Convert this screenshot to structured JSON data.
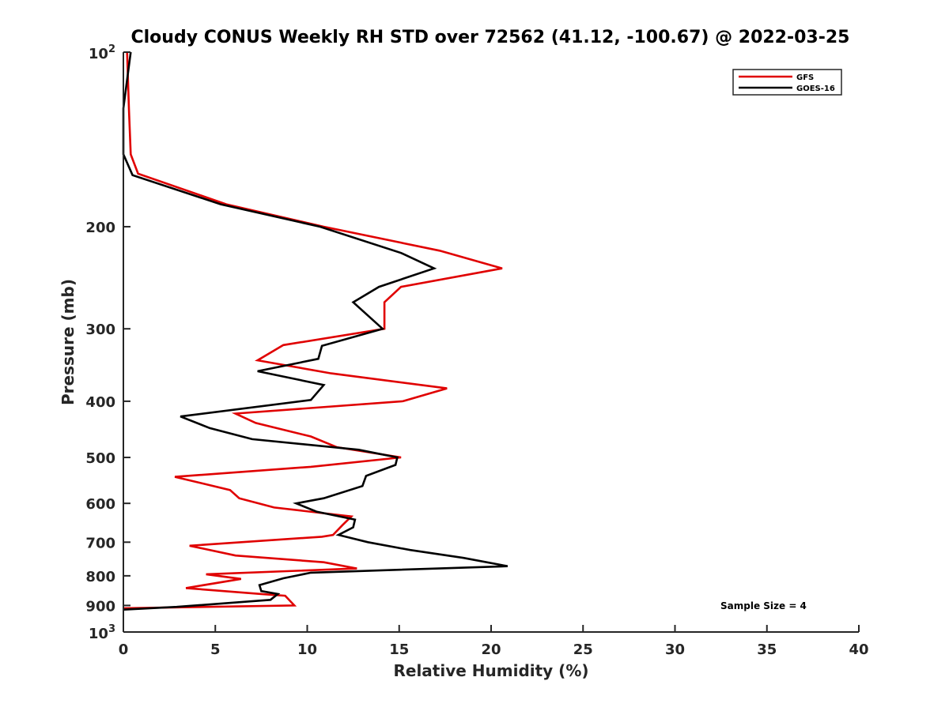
{
  "chart_data": {
    "type": "line",
    "title": "Cloudy CONUS Weekly RH STD over 72562 (41.12, -100.67) @ 2022-03-25",
    "xlabel": "Relative Humidity (%)",
    "ylabel": "Pressure (mb)",
    "xlim": [
      0,
      40
    ],
    "ylim": [
      1000,
      100
    ],
    "y_scale": "log",
    "y_reversed": true,
    "x_ticks": [
      "0",
      "5",
      "10",
      "15",
      "20",
      "25",
      "30",
      "35",
      "40"
    ],
    "y_ticks": [
      {
        "value": 100,
        "base": "10",
        "exp": "2"
      },
      {
        "value": 200,
        "label": "200"
      },
      {
        "value": 300,
        "label": "300"
      },
      {
        "value": 400,
        "label": "400"
      },
      {
        "value": 500,
        "label": "500"
      },
      {
        "value": 600,
        "label": "600"
      },
      {
        "value": 700,
        "label": "700"
      },
      {
        "value": 800,
        "label": "800"
      },
      {
        "value": 900,
        "label": "900"
      },
      {
        "value": 1000,
        "base": "10",
        "exp": "3"
      }
    ],
    "grid": false,
    "legend_position": "top-right",
    "annotation": "Sample Size = 4",
    "series": [
      {
        "name": "GFS",
        "color": "#e00000",
        "points": [
          [
            0.2,
            100
          ],
          [
            0.3,
            125
          ],
          [
            0.4,
            150
          ],
          [
            0.8,
            162
          ],
          [
            5.6,
            183
          ],
          [
            10.9,
            200
          ],
          [
            17.2,
            220
          ],
          [
            20.6,
            236
          ],
          [
            15.1,
            254
          ],
          [
            14.2,
            270
          ],
          [
            14.2,
            300
          ],
          [
            8.7,
            320
          ],
          [
            7.3,
            340
          ],
          [
            11.3,
            358
          ],
          [
            17.6,
            380
          ],
          [
            15.2,
            400
          ],
          [
            6.1,
            420
          ],
          [
            7.2,
            436
          ],
          [
            10.2,
            460
          ],
          [
            11.6,
            480
          ],
          [
            15.1,
            500
          ],
          [
            10.2,
            519
          ],
          [
            2.8,
            540
          ],
          [
            5.8,
            569
          ],
          [
            6.3,
            588
          ],
          [
            8.2,
            610
          ],
          [
            12.4,
            632
          ],
          [
            11.9,
            655
          ],
          [
            11.4,
            680
          ],
          [
            10.8,
            685
          ],
          [
            3.6,
            710
          ],
          [
            6.1,
            738
          ],
          [
            10.9,
            758
          ],
          [
            12.7,
            777
          ],
          [
            4.5,
            795
          ],
          [
            6.4,
            810
          ],
          [
            3.4,
            840
          ],
          [
            7.5,
            860
          ],
          [
            8.8,
            866
          ],
          [
            9.3,
            900
          ],
          [
            0.0,
            910
          ]
        ]
      },
      {
        "name": "GOES-16",
        "color": "#000000",
        "points": [
          [
            0.4,
            100
          ],
          [
            0.0,
            125
          ],
          [
            0.0,
            150
          ],
          [
            0.5,
            163
          ],
          [
            5.3,
            183
          ],
          [
            10.7,
            200
          ],
          [
            15.1,
            222
          ],
          [
            16.9,
            236
          ],
          [
            13.9,
            254
          ],
          [
            12.5,
            270
          ],
          [
            14.1,
            300
          ],
          [
            10.8,
            321
          ],
          [
            10.6,
            338
          ],
          [
            7.3,
            355
          ],
          [
            10.9,
            375
          ],
          [
            10.2,
            398
          ],
          [
            3.1,
            425
          ],
          [
            4.7,
            445
          ],
          [
            7.0,
            465
          ],
          [
            12.8,
            485
          ],
          [
            14.9,
            500
          ],
          [
            14.8,
            515
          ],
          [
            13.2,
            538
          ],
          [
            13.0,
            560
          ],
          [
            10.9,
            588
          ],
          [
            9.4,
            600
          ],
          [
            10.5,
            620
          ],
          [
            12.6,
            640
          ],
          [
            12.5,
            660
          ],
          [
            11.7,
            680
          ],
          [
            13.3,
            700
          ],
          [
            15.6,
            722
          ],
          [
            18.5,
            745
          ],
          [
            20.9,
            770
          ],
          [
            10.2,
            790
          ],
          [
            8.7,
            808
          ],
          [
            7.4,
            830
          ],
          [
            7.5,
            850
          ],
          [
            8.4,
            860
          ],
          [
            8.0,
            880
          ],
          [
            2.9,
            905
          ],
          [
            0.0,
            915
          ]
        ]
      }
    ]
  }
}
